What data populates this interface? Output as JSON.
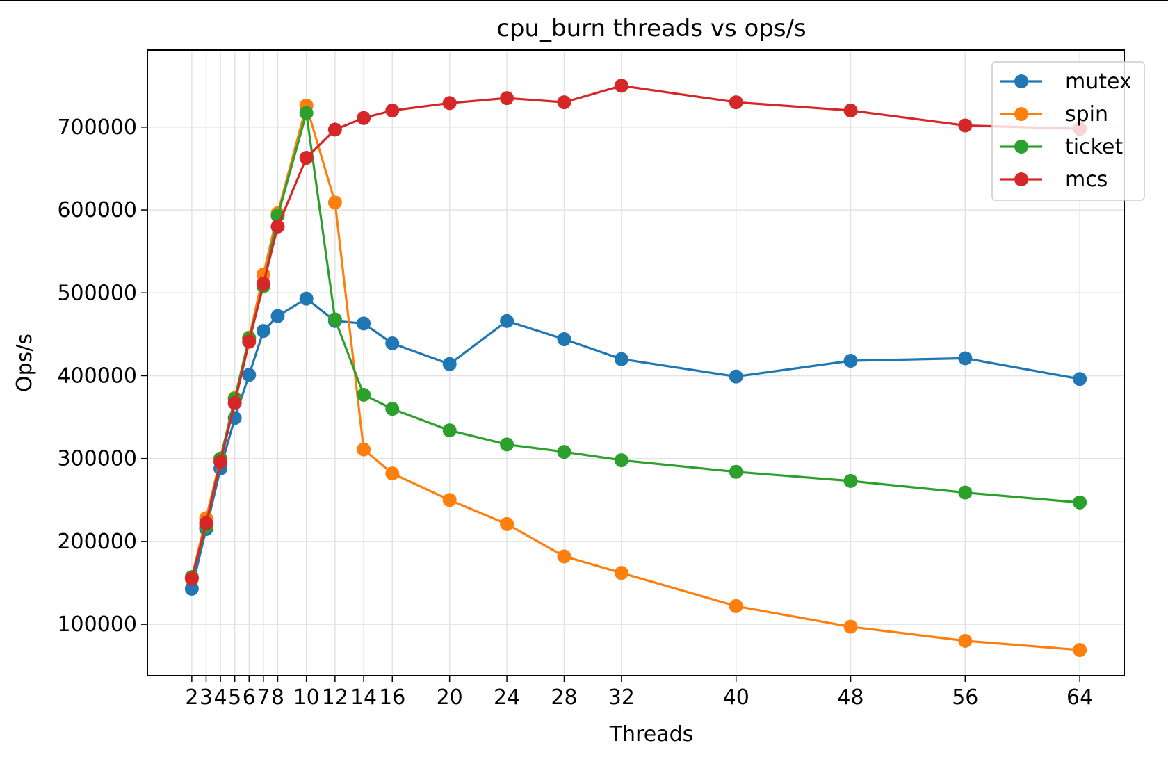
{
  "chart_data": {
    "type": "line",
    "title": "cpu_burn threads vs ops/s",
    "xlabel": "Threads",
    "ylabel": "Ops/s",
    "x": [
      2,
      3,
      4,
      5,
      6,
      7,
      8,
      10,
      12,
      14,
      16,
      20,
      24,
      28,
      32,
      40,
      48,
      56,
      64
    ],
    "xtick_labels": [
      "2",
      "3",
      "4",
      "5",
      "6",
      "7",
      "8",
      "10",
      "12",
      "14",
      "16",
      "20",
      "24",
      "28",
      "32",
      "40",
      "48",
      "56",
      "64"
    ],
    "yticks": [
      100000,
      200000,
      300000,
      400000,
      500000,
      600000,
      700000
    ],
    "ytick_labels": [
      "100000",
      "200000",
      "300000",
      "400000",
      "500000",
      "600000",
      "700000"
    ],
    "xlim": [
      -1.1,
      67.1
    ],
    "ylim": [
      38000,
      793000
    ],
    "grid": true,
    "legend_position": "top-right",
    "series": [
      {
        "name": "mutex",
        "color": "#1f77b4",
        "values": [
          143000,
          215000,
          288000,
          349000,
          401000,
          454000,
          472000,
          493000,
          466000,
          463000,
          439000,
          414000,
          466000,
          444000,
          420000,
          399000,
          418000,
          421000,
          396000
        ]
      },
      {
        "name": "spin",
        "color": "#ff7f0e",
        "values": [
          157000,
          228000,
          300000,
          373000,
          446000,
          522000,
          596000,
          726000,
          609000,
          311000,
          282000,
          250000,
          221000,
          182000,
          162000,
          122000,
          97000,
          80000,
          69000
        ]
      },
      {
        "name": "ticket",
        "color": "#2ca02c",
        "values": [
          157000,
          218000,
          300000,
          372000,
          445000,
          508000,
          593000,
          717000,
          468000,
          377000,
          360000,
          334000,
          317000,
          308000,
          298000,
          284000,
          273000,
          259000,
          247000
        ]
      },
      {
        "name": "mcs",
        "color": "#d62728",
        "values": [
          155000,
          222000,
          296000,
          367000,
          441000,
          511000,
          580000,
          663000,
          697000,
          711000,
          720000,
          729000,
          735000,
          730000,
          750000,
          730000,
          720000,
          702000,
          698000
        ]
      }
    ]
  }
}
